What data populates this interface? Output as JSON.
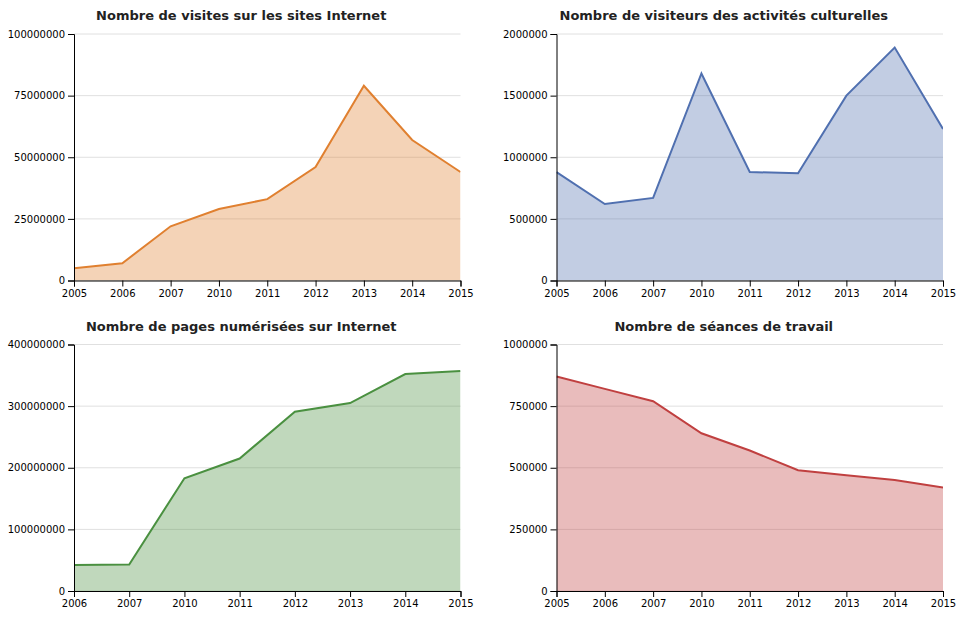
{
  "chart_data": [
    {
      "type": "area",
      "title": "Nombre de visites sur les sites Internet",
      "categories": [
        "2005",
        "2006",
        "2007",
        "2010",
        "2011",
        "2012",
        "2013",
        "2014",
        "2015"
      ],
      "values": [
        5000000,
        7000000,
        22000000,
        29000000,
        33000000,
        46000000,
        79000000,
        57000000,
        44000000
      ],
      "color": "#e08030",
      "ylim": [
        0,
        100000000
      ],
      "yticks": [
        0,
        25000000,
        50000000,
        75000000,
        100000000
      ],
      "grid": true
    },
    {
      "type": "area",
      "title": "Nombre de visiteurs des activités culturelles",
      "categories": [
        "2005",
        "2006",
        "2007",
        "2010",
        "2011",
        "2012",
        "2013",
        "2014",
        "2015"
      ],
      "values": [
        880000,
        620000,
        670000,
        1680000,
        880000,
        870000,
        1500000,
        1890000,
        1230000
      ],
      "color": "#5070b0",
      "ylim": [
        0,
        2000000
      ],
      "yticks": [
        0,
        500000,
        1000000,
        1500000,
        2000000
      ],
      "grid": true
    },
    {
      "type": "area",
      "title": "Nombre de pages numérisées sur Internet",
      "categories": [
        "2006",
        "2007",
        "2010",
        "2011",
        "2012",
        "2013",
        "2014",
        "2015"
      ],
      "values": [
        42000000,
        43000000,
        183000000,
        215000000,
        291000000,
        305000000,
        352000000,
        357000000
      ],
      "color": "#4a9040",
      "ylim": [
        0,
        400000000
      ],
      "yticks": [
        0,
        100000000,
        200000000,
        300000000,
        400000000
      ],
      "grid": true
    },
    {
      "type": "area",
      "title": "Nombre de séances de travail",
      "categories": [
        "2005",
        "2006",
        "2007",
        "2010",
        "2011",
        "2012",
        "2013",
        "2014",
        "2015"
      ],
      "values": [
        870000,
        820000,
        770000,
        640000,
        570000,
        490000,
        470000,
        450000,
        420000
      ],
      "color": "#c04040",
      "ylim": [
        0,
        1000000
      ],
      "yticks": [
        0,
        250000,
        500000,
        750000,
        1000000
      ],
      "grid": true
    }
  ]
}
